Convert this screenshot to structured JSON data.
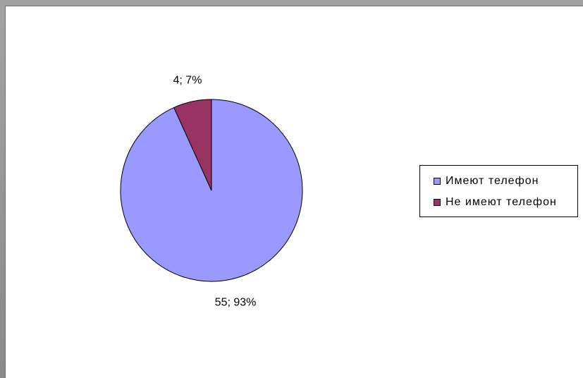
{
  "chart_data": {
    "type": "pie",
    "categories": [
      "Имеют телефон",
      "Не имеют телефон"
    ],
    "values": [
      55,
      4
    ],
    "percents": [
      93,
      7
    ],
    "data_labels": [
      "55; 93%",
      "4; 7%"
    ],
    "colors": [
      "#9999ff",
      "#993366"
    ],
    "legend_position": "right",
    "title": ""
  },
  "legend": {
    "items": [
      {
        "label": "Имеют телефон",
        "color": "#9999ff"
      },
      {
        "label": "Не имеют телефон",
        "color": "#993366"
      }
    ]
  }
}
